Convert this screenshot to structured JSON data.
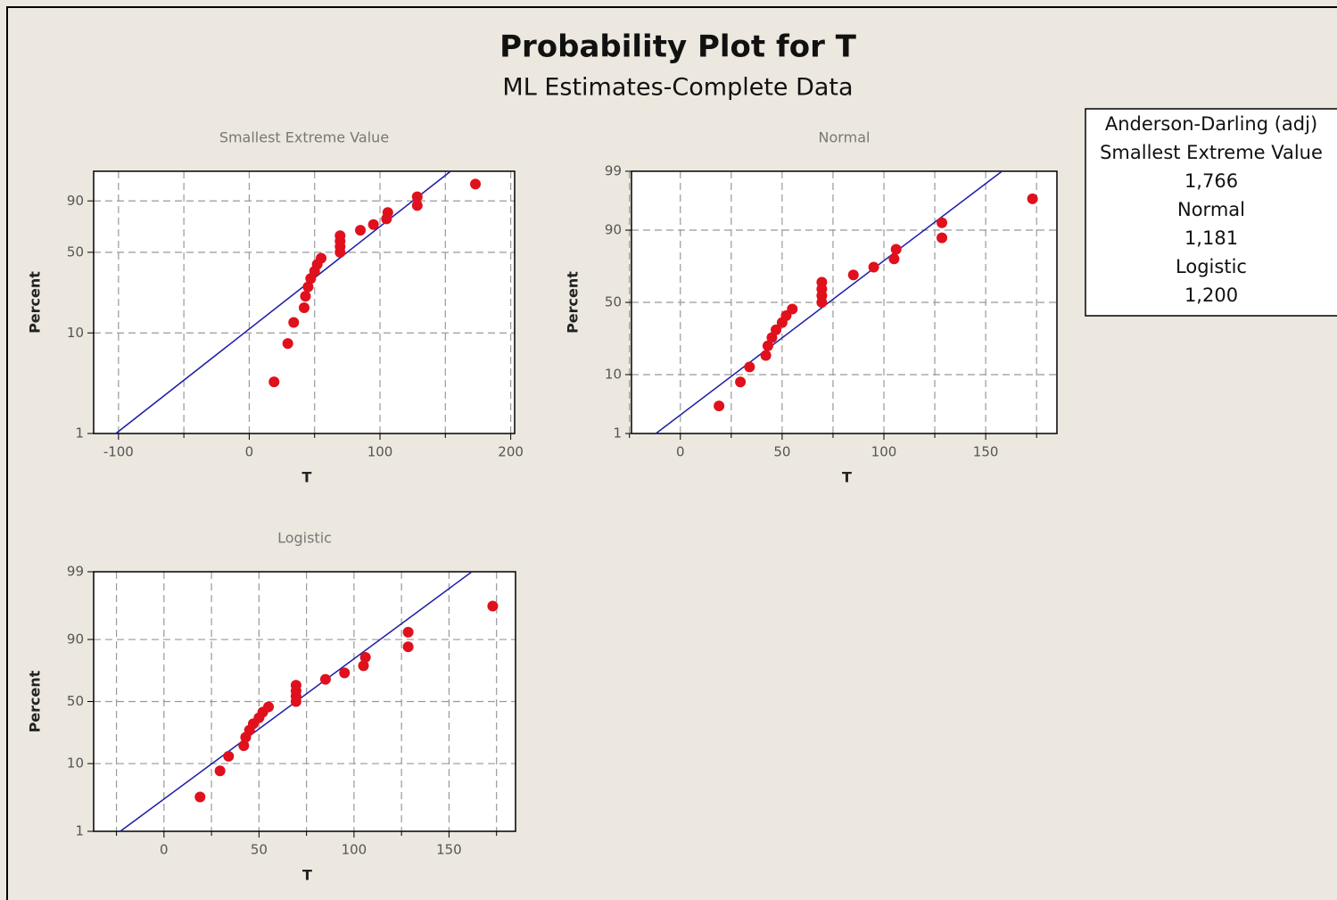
{
  "title": "Probability Plot for T",
  "subtitle": "ML Estimates-Complete Data",
  "chart_data": [
    {
      "type": "probability",
      "title": "Smallest Extreme Value",
      "scale": "smallest-extreme-value",
      "xlabel": "T",
      "ylabel": "Percent",
      "grid": true,
      "x": [
        19,
        29.5,
        34,
        42,
        43,
        45,
        47,
        50,
        52,
        55,
        69.5,
        69.5,
        69.5,
        69.5,
        85,
        95,
        105,
        106,
        128.5,
        128.5,
        173
      ],
      "values": [
        3.3,
        7.9,
        12.6,
        17.3,
        22.0,
        26.6,
        31.3,
        36.0,
        40.7,
        45.3,
        50,
        54.7,
        59.3,
        64.0,
        68.7,
        73.4,
        78.0,
        82.7,
        87.4,
        92.1,
        96.7
      ],
      "color": "#e0101c",
      "fit_line": {
        "x": [
          -102,
          154
        ],
        "values": [
          1,
          99
        ],
        "color": "#1c1ca8"
      },
      "xlim": [
        -119,
        203
      ],
      "xticks": [
        -100,
        0,
        100,
        200
      ],
      "x_minor_ticks": [
        -50,
        50,
        150
      ],
      "ylim": [
        1,
        99
      ],
      "yticks": [
        1,
        10,
        50,
        90
      ]
    },
    {
      "type": "probability",
      "title": "Normal",
      "scale": "normal",
      "xlabel": "T",
      "ylabel": "Percent",
      "grid": true,
      "x": [
        19,
        29.5,
        34,
        42,
        43,
        45,
        47,
        50,
        52,
        55,
        69.5,
        69.5,
        69.5,
        69.5,
        85,
        95,
        105,
        106,
        128.5,
        128.5,
        173
      ],
      "values": [
        3.3,
        7.9,
        12.6,
        17.3,
        22.0,
        26.6,
        31.3,
        36.0,
        40.7,
        45.3,
        50,
        54.7,
        59.3,
        64.0,
        68.7,
        73.4,
        78.0,
        82.7,
        87.4,
        92.1,
        96.7
      ],
      "color": "#e0101c",
      "fit_line": {
        "x": [
          -12,
          158
        ],
        "values": [
          1,
          99
        ],
        "color": "#1c1ca8"
      },
      "xlim": [
        -24,
        185
      ],
      "xticks": [
        0,
        50,
        100,
        150
      ],
      "x_minor_ticks": [
        -25,
        25,
        75,
        125,
        175
      ],
      "ylim": [
        1,
        99
      ],
      "yticks": [
        1,
        10,
        50,
        90,
        99
      ]
    },
    {
      "type": "probability",
      "title": "Logistic",
      "scale": "logistic",
      "xlabel": "T",
      "ylabel": "Percent",
      "grid": true,
      "x": [
        19,
        29.5,
        34,
        42,
        43,
        45,
        47,
        50,
        52,
        55,
        69.5,
        69.5,
        69.5,
        69.5,
        85,
        95,
        105,
        106,
        128.5,
        128.5,
        173
      ],
      "values": [
        3.3,
        7.9,
        12.6,
        17.3,
        22.0,
        26.6,
        31.3,
        36.0,
        40.7,
        45.3,
        50,
        54.7,
        59.3,
        64.0,
        68.7,
        73.4,
        78.0,
        82.7,
        87.4,
        92.1,
        96.7
      ],
      "color": "#e0101c",
      "fit_line": {
        "x": [
          -23,
          162
        ],
        "values": [
          1,
          99
        ],
        "color": "#1c1ca8"
      },
      "xlim": [
        -37,
        185
      ],
      "xticks": [
        0,
        50,
        100,
        150
      ],
      "x_minor_ticks": [
        -25,
        25,
        75,
        125,
        175
      ],
      "ylim": [
        1,
        99
      ],
      "yticks": [
        1,
        10,
        50,
        90,
        99
      ]
    }
  ],
  "goodness_of_fit": {
    "title": "Anderson-Darling (adj)",
    "names": [
      "Smallest Extreme Value",
      "Normal",
      "Logistic"
    ],
    "values": [
      1.766,
      1.181,
      1.2
    ],
    "value_labels": [
      "1,766",
      "1,181",
      "1,200"
    ]
  }
}
